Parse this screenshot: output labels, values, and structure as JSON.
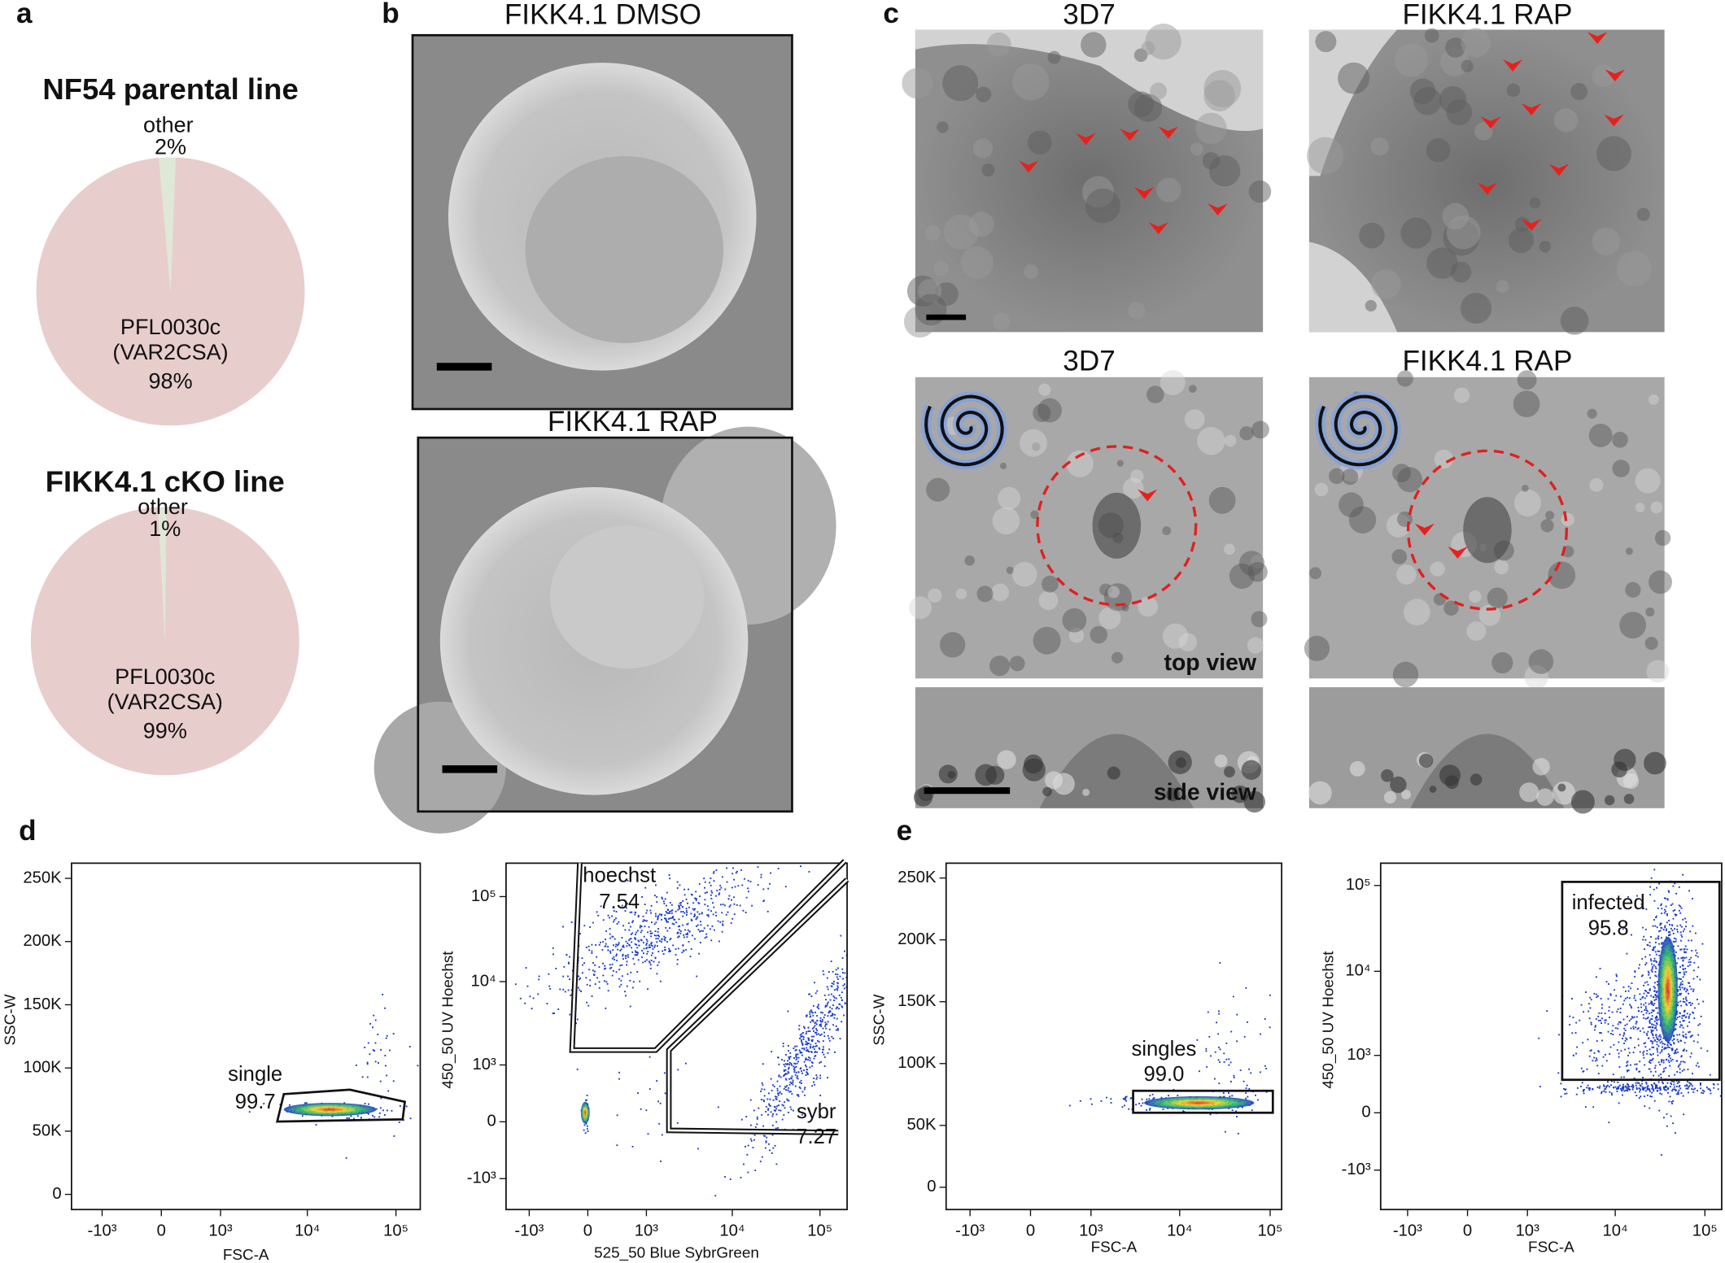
{
  "panel_labels": [
    "a",
    "b",
    "c",
    "d",
    "e"
  ],
  "chart_data": [
    {
      "type": "pie",
      "title": "NF54 parental line",
      "categories": [
        "other",
        "PFL0030c (VAR2CSA)"
      ],
      "values": [
        2,
        98
      ],
      "value_labels": [
        "2%",
        "98%"
      ],
      "colors": [
        "#dfe8d6",
        "#e7cdcc"
      ]
    },
    {
      "type": "pie",
      "title": "FIKK4.1 cKO line",
      "categories": [
        "other",
        "PFL0030c (VAR2CSA)"
      ],
      "values": [
        1,
        99
      ],
      "value_labels": [
        "1%",
        "99%"
      ],
      "colors": [
        "#dfe8d6",
        "#e7cdcc"
      ]
    },
    {
      "type": "flow",
      "x_label": "FSC-A",
      "y_label": "SSC-W",
      "x_scale": "biexponential",
      "y_scale": "linear",
      "xlim": [
        -2300,
        188000
      ],
      "ylim": [
        -12000,
        262000
      ],
      "xticks": [
        {
          "value": -1000,
          "label": "-10³"
        },
        0,
        {
          "value": 1000,
          "label": "10³"
        },
        {
          "value": 10000,
          "label": "10⁴"
        },
        {
          "value": 100000,
          "label": "10⁵"
        }
      ],
      "yticks": [
        0,
        {
          "value": 50000,
          "label": "50K"
        },
        {
          "value": 100000,
          "label": "100K"
        },
        {
          "value": 150000,
          "label": "150K"
        },
        {
          "value": 200000,
          "label": "200K"
        },
        {
          "value": 250000,
          "label": "250K"
        }
      ],
      "gates": [
        {
          "name": "single",
          "percent": 99.7
        }
      ]
    },
    {
      "type": "flow",
      "x_label": "525_50 Blue  SybrGreen",
      "y_label": "450_50 UV  Hoechst",
      "x_scale": "biexponential",
      "y_scale": "biexponential",
      "xlim": [
        -1900,
        204000
      ],
      "ylim": [
        -2400,
        247000
      ],
      "xticks": [
        {
          "value": -1000,
          "label": "-10³"
        },
        0,
        {
          "value": 1000,
          "label": "10³"
        },
        {
          "value": 10000,
          "label": "10⁴"
        },
        {
          "value": 100000,
          "label": "10⁵"
        }
      ],
      "yticks": [
        {
          "value": -1000,
          "label": "-10³"
        },
        0,
        {
          "value": 1000,
          "label": "10³"
        },
        {
          "value": 10000,
          "label": "10⁴"
        },
        {
          "value": 100000,
          "label": "10⁵"
        }
      ],
      "gates": [
        {
          "name": "hoechst",
          "percent": 7.54
        },
        {
          "name": "sybr",
          "percent": 7.27
        }
      ]
    },
    {
      "type": "flow",
      "x_label": "FSC-A",
      "y_label": "SSC-W",
      "x_scale": "biexponential",
      "y_scale": "linear",
      "xlim": [
        -1900,
        134000
      ],
      "ylim": [
        -18000,
        262000
      ],
      "xticks": [
        {
          "value": -1000,
          "label": "-10³"
        },
        0,
        {
          "value": 1000,
          "label": "10³"
        },
        {
          "value": 10000,
          "label": "10⁴"
        },
        {
          "value": 100000,
          "label": "10⁵"
        }
      ],
      "yticks": [
        0,
        {
          "value": 50000,
          "label": "50K"
        },
        {
          "value": 100000,
          "label": "100K"
        },
        {
          "value": 150000,
          "label": "150K"
        },
        {
          "value": 200000,
          "label": "200K"
        },
        {
          "value": 250000,
          "label": "250K"
        }
      ],
      "gates": [
        {
          "name": "singles",
          "percent": {
            "value": 99,
            "label": "99.0"
          }
        }
      ]
    },
    {
      "type": "flow",
      "x_label": "FSC-A",
      "y_label": "450_50 UV Hoechst",
      "x_scale": "biexponential",
      "y_scale": "biexponential",
      "xlim": [
        -2070,
        154000
      ],
      "ylim": [
        -3000,
        182000
      ],
      "xticks": [
        {
          "value": -1000,
          "label": "-10³"
        },
        0,
        {
          "value": 1000,
          "label": "10³"
        },
        {
          "value": 10000,
          "label": "10⁴"
        },
        {
          "value": 100000,
          "label": "10⁵"
        }
      ],
      "yticks": [
        {
          "value": -1000,
          "label": "-10³"
        },
        0,
        {
          "value": 1000,
          "label": "10³"
        },
        {
          "value": 10000,
          "label": "10⁴"
        },
        {
          "value": 100000,
          "label": "10⁵"
        }
      ],
      "gates": [
        {
          "name": "infected",
          "percent": 95.8
        }
      ]
    }
  ],
  "micrographs": {
    "b": {
      "titles": [
        "FIKK4.1 DMSO",
        "FIKK4.1 RAP"
      ]
    },
    "c": {
      "titles": [
        "3D7",
        "FIKK4.1 RAP",
        "3D7",
        "FIKK4.1 RAP"
      ],
      "view_labels": [
        "top view",
        "side view"
      ]
    }
  }
}
